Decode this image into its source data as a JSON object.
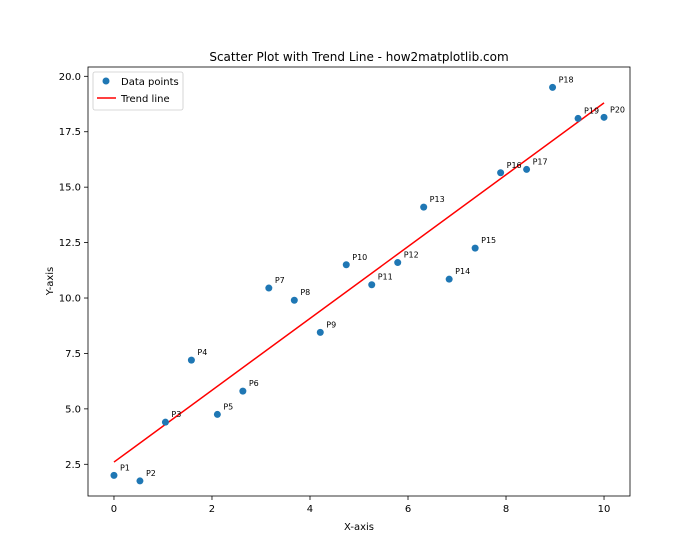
{
  "chart_data": {
    "type": "scatter",
    "title": "Scatter Plot with Trend Line - how2matplotlib.com",
    "xlabel": "X-axis",
    "ylabel": "Y-axis",
    "xlim": [
      -0.53,
      10.53
    ],
    "ylim": [
      1.07,
      20.42
    ],
    "xticks": [
      0,
      2,
      4,
      6,
      8,
      10
    ],
    "xtick_labels": [
      "0",
      "2",
      "4",
      "6",
      "8",
      "10"
    ],
    "yticks": [
      2.5,
      5.0,
      7.5,
      10.0,
      12.5,
      15.0,
      17.5,
      20.0
    ],
    "ytick_labels": [
      "2.5",
      "5.0",
      "7.5",
      "10.0",
      "12.5",
      "15.0",
      "17.5",
      "20.0"
    ],
    "grid": false,
    "legend": {
      "position": "upper-left",
      "entries": [
        {
          "label": "Data points",
          "marker": "circle",
          "color": "#1f77b4"
        },
        {
          "label": "Trend line",
          "marker": "line",
          "color": "#ff0000"
        }
      ]
    },
    "series": [
      {
        "name": "Data points",
        "kind": "scatter",
        "color": "#1f77b4",
        "points": [
          {
            "x": 0.0,
            "y": 2.0,
            "label": "P1"
          },
          {
            "x": 0.53,
            "y": 1.75,
            "label": "P2"
          },
          {
            "x": 1.05,
            "y": 4.4,
            "label": "P3"
          },
          {
            "x": 1.58,
            "y": 7.2,
            "label": "P4"
          },
          {
            "x": 2.11,
            "y": 4.75,
            "label": "P5"
          },
          {
            "x": 2.63,
            "y": 5.8,
            "label": "P6"
          },
          {
            "x": 3.16,
            "y": 10.45,
            "label": "P7"
          },
          {
            "x": 3.68,
            "y": 9.9,
            "label": "P8"
          },
          {
            "x": 4.21,
            "y": 8.45,
            "label": "P9"
          },
          {
            "x": 4.74,
            "y": 11.5,
            "label": "P10"
          },
          {
            "x": 5.26,
            "y": 10.6,
            "label": "P11"
          },
          {
            "x": 5.79,
            "y": 11.6,
            "label": "P12"
          },
          {
            "x": 6.32,
            "y": 14.1,
            "label": "P13"
          },
          {
            "x": 6.84,
            "y": 10.85,
            "label": "P14"
          },
          {
            "x": 7.37,
            "y": 12.25,
            "label": "P15"
          },
          {
            "x": 7.89,
            "y": 15.65,
            "label": "P16"
          },
          {
            "x": 8.42,
            "y": 15.8,
            "label": "P17"
          },
          {
            "x": 8.95,
            "y": 19.5,
            "label": "P18"
          },
          {
            "x": 9.47,
            "y": 18.1,
            "label": "P19"
          },
          {
            "x": 10.0,
            "y": 18.15,
            "label": "P20"
          }
        ]
      },
      {
        "name": "Trend line",
        "kind": "line",
        "color": "#ff0000",
        "x": [
          0,
          10
        ],
        "y": [
          2.6,
          18.8
        ]
      }
    ]
  }
}
